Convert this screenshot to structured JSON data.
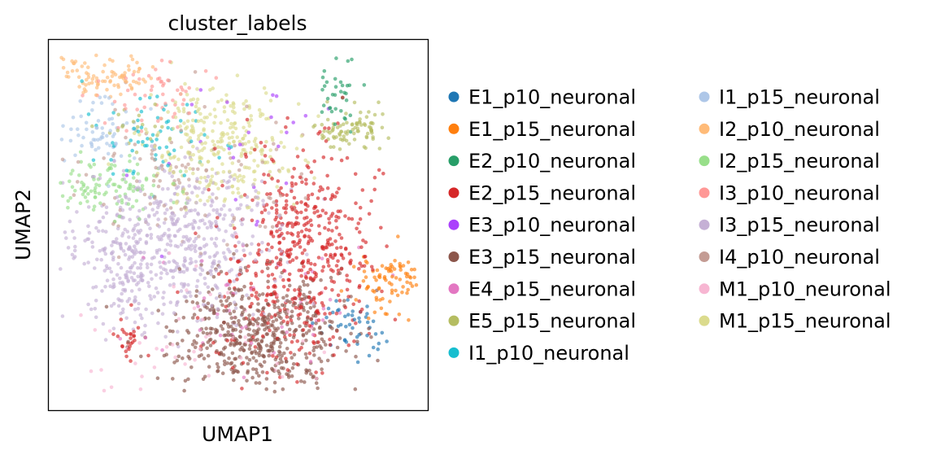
{
  "chart_data": {
    "type": "scatter",
    "title": "cluster_labels",
    "xlabel": "UMAP1",
    "ylabel": "UMAP2",
    "grid": false,
    "ticks": false,
    "legend_placement": "right, two columns",
    "xlim": [
      0,
      100
    ],
    "ylim": [
      0,
      100
    ],
    "series": [
      {
        "name": "E1_p10_neuronal",
        "color": "#1f77b4",
        "clusters": [
          {
            "cx": 80,
            "cy": 22,
            "sx": 4,
            "sy": 4,
            "n": 45
          }
        ]
      },
      {
        "name": "E1_p15_neuronal",
        "color": "#ff7f0e",
        "clusters": [
          {
            "cx": 90,
            "cy": 35,
            "sx": 5,
            "sy": 4,
            "n": 90
          }
        ]
      },
      {
        "name": "E2_p10_neuronal",
        "color": "#279e68",
        "clusters": [
          {
            "cx": 77,
            "cy": 85,
            "sx": 2.5,
            "sy": 5,
            "n": 35
          }
        ]
      },
      {
        "name": "E2_p15_neuronal",
        "color": "#d62728",
        "clusters": [
          {
            "cx": 66,
            "cy": 45,
            "sx": 9,
            "sy": 13,
            "n": 420
          },
          {
            "cx": 21,
            "cy": 20,
            "sx": 1.5,
            "sy": 3,
            "n": 25
          },
          {
            "cx": 62,
            "cy": 25,
            "sx": 14,
            "sy": 8,
            "n": 90
          }
        ]
      },
      {
        "name": "E3_p10_neuronal",
        "color": "#aa40fc",
        "clusters": [
          {
            "cx": 50,
            "cy": 72,
            "sx": 12,
            "sy": 10,
            "n": 25
          }
        ]
      },
      {
        "name": "E3_p15_neuronal",
        "color": "#8c564b",
        "clusters": [
          {
            "cx": 55,
            "cy": 20,
            "sx": 11,
            "sy": 8,
            "n": 520
          }
        ]
      },
      {
        "name": "E4_p15_neuronal",
        "color": "#e377c2",
        "clusters": [
          {
            "cx": 58,
            "cy": 28,
            "sx": 14,
            "sy": 10,
            "n": 45
          }
        ]
      },
      {
        "name": "E5_p15_neuronal",
        "color": "#b5bd61",
        "clusters": [
          {
            "cx": 79,
            "cy": 76,
            "sx": 5,
            "sy": 2.5,
            "n": 85
          },
          {
            "cx": 23,
            "cy": 76,
            "sx": 6,
            "sy": 3,
            "n": 20
          }
        ]
      },
      {
        "name": "I1_p10_neuronal",
        "color": "#17becf",
        "clusters": [
          {
            "cx": 27,
            "cy": 73,
            "sx": 10,
            "sy": 6,
            "n": 60
          }
        ]
      },
      {
        "name": "I1_p15_neuronal",
        "color": "#aec7e8",
        "clusters": [
          {
            "cx": 14,
            "cy": 75,
            "sx": 6,
            "sy": 5,
            "n": 70
          }
        ]
      },
      {
        "name": "I2_p10_neuronal",
        "color": "#ffbb78",
        "clusters": [
          {
            "cx": 14,
            "cy": 90,
            "sx": 7,
            "sy": 3,
            "n": 90
          }
        ]
      },
      {
        "name": "I2_p15_neuronal",
        "color": "#98df8a",
        "clusters": [
          {
            "cx": 17,
            "cy": 60,
            "sx": 8,
            "sy": 4,
            "n": 110
          }
        ]
      },
      {
        "name": "I3_p10_neuronal",
        "color": "#ff9896",
        "clusters": [
          {
            "cx": 28,
            "cy": 84,
            "sx": 7,
            "sy": 4,
            "n": 55
          }
        ]
      },
      {
        "name": "I3_p15_neuronal",
        "color": "#c5b0d5",
        "clusters": [
          {
            "cx": 33,
            "cy": 45,
            "sx": 14,
            "sy": 10,
            "n": 560
          },
          {
            "cx": 20,
            "cy": 35,
            "sx": 4,
            "sy": 7,
            "n": 60
          }
        ]
      },
      {
        "name": "I4_p10_neuronal",
        "color": "#c49c94",
        "clusters": [
          {
            "cx": 35,
            "cy": 62,
            "sx": 14,
            "sy": 10,
            "n": 110
          }
        ]
      },
      {
        "name": "M1_p10_neuronal",
        "color": "#f7b6d2",
        "clusters": [
          {
            "cx": 45,
            "cy": 20,
            "sx": 18,
            "sy": 10,
            "n": 60
          }
        ]
      },
      {
        "name": "M1_p15_neuronal",
        "color": "#dbdb8d",
        "clusters": [
          {
            "cx": 46,
            "cy": 72,
            "sx": 9,
            "sy": 8,
            "n": 290
          }
        ]
      }
    ]
  }
}
